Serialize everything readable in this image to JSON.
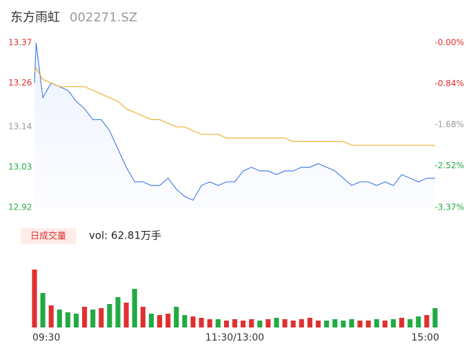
{
  "chart_data": {
    "type": "intraday",
    "title": "东方雨虹",
    "subtitle": "002271.SZ",
    "x": [
      0,
      1,
      5,
      10,
      15,
      20,
      25,
      30,
      35,
      40,
      45,
      50,
      55,
      60,
      65,
      70,
      75,
      80,
      85,
      90,
      95,
      100,
      105,
      110,
      115,
      120,
      125,
      130,
      135,
      140,
      145,
      150,
      155,
      160,
      165,
      170,
      175,
      180,
      185,
      190,
      195,
      200,
      205,
      210,
      215,
      220,
      225,
      230,
      235,
      240
    ],
    "xlim": [
      0,
      240
    ],
    "xticks": [
      {
        "value": 0,
        "label": "09:30"
      },
      {
        "value": 120,
        "label": "11:30/13:00"
      },
      {
        "value": 240,
        "label": "15:00"
      }
    ],
    "ylim": [
      12.92,
      13.37
    ],
    "yticks": [
      12.92,
      13.03,
      13.14,
      13.26,
      13.37
    ],
    "ytick_colors": [
      "#22aa44",
      "#22aa44",
      "#999999",
      "#e03030",
      "#e03030"
    ],
    "y2lim": [
      -3.37,
      0
    ],
    "y2ticks": [
      {
        "value": -3.37,
        "label": "-3.37%"
      },
      {
        "value": -2.52,
        "label": "-2.52%"
      },
      {
        "value": -1.68,
        "label": "-1.68%"
      },
      {
        "value": -0.84,
        "label": "-0.84%"
      },
      {
        "value": 0,
        "label": "-0.00%"
      }
    ],
    "y2tick_colors": [
      "#22aa44",
      "#22aa44",
      "#999999",
      "#e03030",
      "#e03030"
    ],
    "series": [
      {
        "color": "#4a80e6",
        "values": [
          13.26,
          13.37,
          13.22,
          13.26,
          13.25,
          13.24,
          13.21,
          13.19,
          13.16,
          13.16,
          13.13,
          13.08,
          13.03,
          12.99,
          12.99,
          12.98,
          12.98,
          13.0,
          12.97,
          12.95,
          12.94,
          12.98,
          12.99,
          12.98,
          12.99,
          12.99,
          13.02,
          13.03,
          13.02,
          13.02,
          13.01,
          13.02,
          13.02,
          13.03,
          13.03,
          13.04,
          13.03,
          13.02,
          13.0,
          12.98,
          12.99,
          12.99,
          12.98,
          12.99,
          12.98,
          13.01,
          13.0,
          12.99,
          13.0,
          13.0
        ]
      },
      {
        "color": "#f0b030",
        "values": [
          13.29,
          13.3,
          13.27,
          13.26,
          13.25,
          13.25,
          13.25,
          13.25,
          13.24,
          13.23,
          13.22,
          13.21,
          13.19,
          13.18,
          13.17,
          13.16,
          13.16,
          13.15,
          13.14,
          13.14,
          13.13,
          13.12,
          13.12,
          13.12,
          13.11,
          13.11,
          13.11,
          13.11,
          13.11,
          13.11,
          13.11,
          13.11,
          13.1,
          13.1,
          13.1,
          13.1,
          13.1,
          13.1,
          13.1,
          13.09,
          13.09,
          13.09,
          13.09,
          13.09,
          13.09,
          13.09,
          13.09,
          13.09,
          13.09,
          13.09
        ]
      }
    ],
    "volume": {
      "label": "日成交量",
      "total_label": "vol: 62.81万手",
      "x": [
        0,
        5,
        10,
        15,
        20,
        25,
        30,
        35,
        40,
        45,
        50,
        55,
        60,
        65,
        70,
        75,
        80,
        85,
        90,
        95,
        100,
        105,
        110,
        115,
        120,
        125,
        130,
        135,
        140,
        145,
        150,
        155,
        160,
        165,
        170,
        175,
        180,
        185,
        190,
        195,
        200,
        205,
        210,
        215,
        220,
        225,
        230,
        235,
        240
      ],
      "values": [
        4.2,
        2.5,
        1.6,
        1.3,
        1.1,
        1.0,
        1.5,
        1.3,
        1.4,
        1.7,
        2.2,
        1.8,
        2.8,
        1.5,
        1.0,
        0.9,
        1.0,
        1.5,
        0.9,
        0.8,
        0.7,
        0.6,
        0.6,
        0.5,
        0.6,
        0.5,
        0.6,
        0.5,
        0.6,
        0.7,
        0.6,
        0.5,
        0.6,
        0.7,
        0.5,
        0.5,
        0.6,
        0.5,
        0.6,
        0.5,
        0.5,
        0.6,
        0.5,
        0.6,
        0.7,
        0.6,
        0.8,
        0.9,
        1.4
      ],
      "colors": [
        "#e03030",
        "#22aa44",
        "#e03030",
        "#22aa44",
        "#22aa44",
        "#22aa44",
        "#e03030",
        "#22aa44",
        "#e03030",
        "#22aa44",
        "#22aa44",
        "#e03030",
        "#22aa44",
        "#e03030",
        "#22aa44",
        "#e03030",
        "#e03030",
        "#22aa44",
        "#22aa44",
        "#e03030",
        "#e03030",
        "#e03030",
        "#22aa44",
        "#e03030",
        "#e03030",
        "#e03030",
        "#e03030",
        "#22aa44",
        "#e03030",
        "#22aa44",
        "#e03030",
        "#e03030",
        "#e03030",
        "#e03030",
        "#e03030",
        "#22aa44",
        "#22aa44",
        "#22aa44",
        "#22aa44",
        "#e03030",
        "#e03030",
        "#22aa44",
        "#e03030",
        "#22aa44",
        "#e03030",
        "#22aa44",
        "#22aa44",
        "#e03030",
        "#22aa44"
      ],
      "max": 5
    }
  }
}
